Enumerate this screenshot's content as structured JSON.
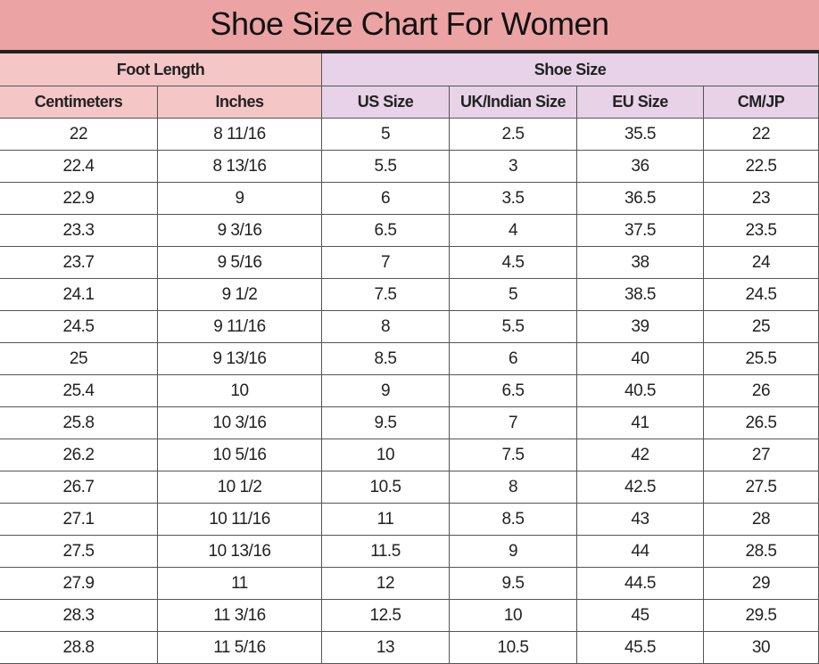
{
  "title": "Shoe Size Chart For Women",
  "table": {
    "groups": [
      "Foot Length",
      "Shoe Size"
    ],
    "columns": [
      "Centimeters",
      "Inches",
      "US Size",
      "UK/Indian Size",
      "EU Size",
      "CM/JP"
    ],
    "rows": [
      [
        "22",
        "8 11/16",
        "5",
        "2.5",
        "35.5",
        "22"
      ],
      [
        "22.4",
        "8 13/16",
        "5.5",
        "3",
        "36",
        "22.5"
      ],
      [
        "22.9",
        "9",
        "6",
        "3.5",
        "36.5",
        "23"
      ],
      [
        "23.3",
        "9 3/16",
        "6.5",
        "4",
        "37.5",
        "23.5"
      ],
      [
        "23.7",
        "9 5/16",
        "7",
        "4.5",
        "38",
        "24"
      ],
      [
        "24.1",
        "9 1/2",
        "7.5",
        "5",
        "38.5",
        "24.5"
      ],
      [
        "24.5",
        "9 11/16",
        "8",
        "5.5",
        "39",
        "25"
      ],
      [
        "25",
        "9 13/16",
        "8.5",
        "6",
        "40",
        "25.5"
      ],
      [
        "25.4",
        "10",
        "9",
        "6.5",
        "40.5",
        "26"
      ],
      [
        "25.8",
        "10 3/16",
        "9.5",
        "7",
        "41",
        "26.5"
      ],
      [
        "26.2",
        "10 5/16",
        "10",
        "7.5",
        "42",
        "27"
      ],
      [
        "26.7",
        "10 1/2",
        "10.5",
        "8",
        "42.5",
        "27.5"
      ],
      [
        "27.1",
        "10 11/16",
        "11",
        "8.5",
        "43",
        "28"
      ],
      [
        "27.5",
        "10 13/16",
        "11.5",
        "9",
        "44",
        "28.5"
      ],
      [
        "27.9",
        "11",
        "12",
        "9.5",
        "44.5",
        "29"
      ],
      [
        "28.3",
        "11 3/16",
        "12.5",
        "10",
        "45",
        "29.5"
      ],
      [
        "28.8",
        "11 5/16",
        "13",
        "10.5",
        "45.5",
        "30"
      ]
    ]
  }
}
